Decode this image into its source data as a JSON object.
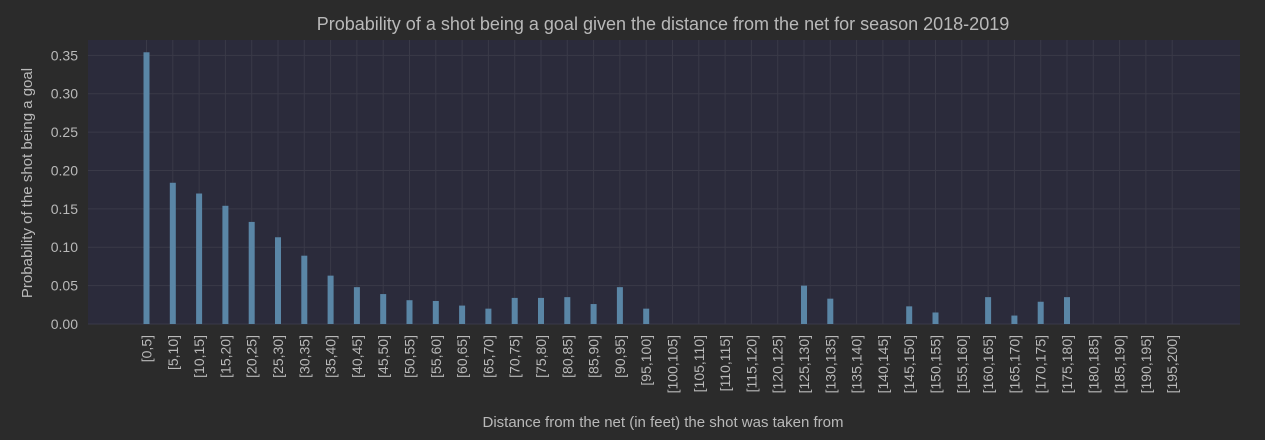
{
  "chart_data": {
    "type": "bar",
    "title": "Probability of a shot being a goal given the distance from the net for season 2018-2019",
    "xlabel": "Distance from the net (in feet) the shot was taken from",
    "ylabel": "Probability of the shot being a goal",
    "ylim": [
      0,
      0.37
    ],
    "yticks": [
      "0.00",
      "0.05",
      "0.10",
      "0.15",
      "0.20",
      "0.25",
      "0.30",
      "0.35"
    ],
    "grid": true,
    "categories": [
      "[0,5]",
      "[5,10]",
      "[10,15]",
      "[15,20]",
      "[20,25]",
      "[25,30]",
      "[30,35]",
      "[35,40]",
      "[40,45]",
      "[45,50]",
      "[50,55]",
      "[55,60]",
      "[60,65]",
      "[65,70]",
      "[70,75]",
      "[75,80]",
      "[80,85]",
      "[85,90]",
      "[90,95]",
      "[95,100]",
      "[100,105]",
      "[105,110]",
      "[110,115]",
      "[115,120]",
      "[120,125]",
      "[125,130]",
      "[130,135]",
      "[135,140]",
      "[140,145]",
      "[145,150]",
      "[150,155]",
      "[155,160]",
      "[160,165]",
      "[165,170]",
      "[170,175]",
      "[175,180]",
      "[180,185]",
      "[185,190]",
      "[190,195]",
      "[195,200]"
    ],
    "values": [
      0.354,
      0.184,
      0.17,
      0.154,
      0.133,
      0.113,
      0.089,
      0.063,
      0.048,
      0.039,
      0.031,
      0.03,
      0.024,
      0.02,
      0.034,
      0.034,
      0.035,
      0.026,
      0.048,
      0.02,
      0,
      0,
      0,
      0,
      0,
      0.05,
      0.033,
      0,
      0,
      0.023,
      0.015,
      0,
      0.035,
      0.011,
      0.029,
      0.035,
      0,
      0,
      0,
      0
    ],
    "colors": {
      "background": "#2b2b2b",
      "plot_background": "#2b2b3b",
      "bar": "#5a86a6",
      "text": "#b9b9b9",
      "grid": "#3a3a48"
    }
  }
}
